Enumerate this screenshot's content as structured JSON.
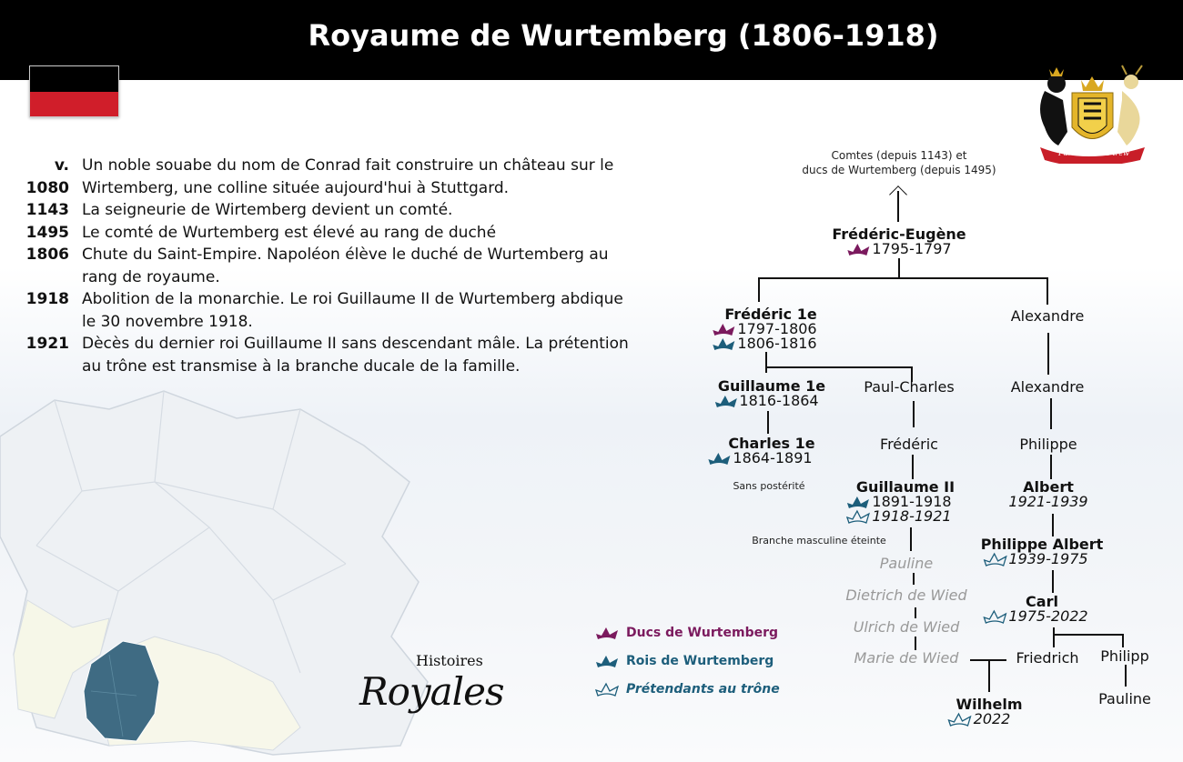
{
  "title": "Royaume de Wurtemberg (1806-1918)",
  "colors": {
    "ducs": "#7b1a5e",
    "rois": "#1d5e7b",
    "flag_top": "#000000",
    "flag_bottom": "#d01e2a"
  },
  "timeline": [
    {
      "date": "v. 1080",
      "text": "Un noble souabe du nom de Conrad fait construire un château sur le Wirtemberg, une colline située aujourd'hui à Stuttgard."
    },
    {
      "date": "1143",
      "text": "La seigneurie de Wirtemberg devient un comté."
    },
    {
      "date": "1495",
      "text": "Le comté de Wurtemberg est élevé au rang de duché"
    },
    {
      "date": "1806",
      "text": "Chute du Saint-Empire. Napoléon élève le duché de Wurtemberg au rang de royaume."
    },
    {
      "date": "1918",
      "text": "Abolition de la monarchie. Le roi Guillaume II de Wurtemberg abdique le 30 novembre 1918."
    },
    {
      "date": "1921",
      "text": "Dècès du dernier roi Guillaume II sans descendant mâle. La prétention au trône est transmise à la branche ducale de la famille."
    }
  ],
  "tree": {
    "origin_1": "Comtes (depuis 1143) et",
    "origin_2": "ducs de Wurtemberg (depuis 1495)",
    "frederic_eugene": {
      "name": "Frédéric-Eugène",
      "d1": "1795-1797"
    },
    "frederic1": {
      "name": "Frédéric 1e",
      "d1": "1797-1806",
      "d2": "1806-1816"
    },
    "alexandre1": "Alexandre",
    "guillaume1": {
      "name": "Guillaume 1e",
      "d1": "1816-1864"
    },
    "paul_charles": "Paul-Charles",
    "alexandre2": "Alexandre",
    "charles1": {
      "name": "Charles 1e",
      "d1": "1864-1891"
    },
    "sans_posterite": "Sans postérité",
    "frederic": "Frédéric",
    "philippe": "Philippe",
    "guillaume2": {
      "name": "Guillaume II",
      "d1": "1891-1918",
      "d2": "1918-1921"
    },
    "albert": {
      "name": "Albert",
      "d1": "1921-1939"
    },
    "branche": "Branche masculine éteinte",
    "pauline1": "Pauline",
    "dietrich": "Dietrich de Wied",
    "ulrich": "Ulrich de Wied",
    "marie": "Marie de Wied",
    "philippe_albert": {
      "name": "Philippe Albert",
      "d1": "1939-1975"
    },
    "carl": {
      "name": "Carl",
      "d1": "1975-2022"
    },
    "friedrich": "Friedrich",
    "philipp": "Philipp",
    "pauline2": "Pauline",
    "wilhelm": {
      "name": "Wilhelm",
      "d1": "2022"
    }
  },
  "legend": {
    "ducs": "Ducs de Wurtemberg",
    "rois": "Rois de Wurtemberg",
    "pretendants": "Prétendants au trône"
  },
  "logo": {
    "line1": "Histoires",
    "line2": "Royales"
  },
  "arms_motto": "Furchtlos und trew"
}
